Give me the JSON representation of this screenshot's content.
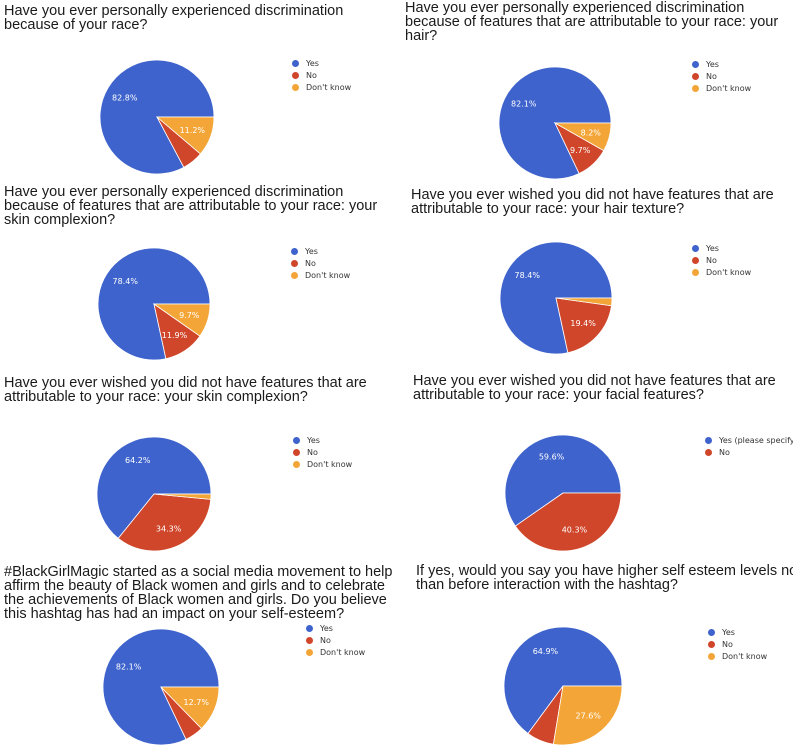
{
  "colors": {
    "Yes": "#3e63cc",
    "No": "#d0462b",
    "Don't know": "#f3a637",
    "Yes (please specify)": "#3e63cc"
  },
  "chart_data": [
    {
      "type": "pie",
      "title": "Have you ever personally experienced discrimination because of your race?",
      "title_lines": [
        "Have you ever personally experienced discrimination",
        "because of your race?"
      ],
      "legend": [
        "Yes",
        "No",
        "Don't know"
      ],
      "values": [
        82.8,
        6.0,
        11.2
      ],
      "value_labels": [
        "82.8%",
        "",
        "11.2%"
      ]
    },
    {
      "type": "pie",
      "title": "Have you ever personally experienced discrimination because of features that are attributable to your race: your hair?",
      "title_lines": [
        "Have you ever personally experienced discrimination",
        "because of features that are attributable to your race: your",
        "hair?"
      ],
      "legend": [
        "Yes",
        "No",
        "Don't know"
      ],
      "values": [
        82.1,
        9.7,
        8.2
      ],
      "value_labels": [
        "82.1%",
        "9.7%",
        "8.2%"
      ]
    },
    {
      "type": "pie",
      "title": "Have you ever personally experienced discrimination because of features that are attributable to your race: your skin complexion?",
      "title_lines": [
        "Have you ever personally experienced discrimination",
        "because of features that are attributable to your race: your",
        "skin complexion?"
      ],
      "legend": [
        "Yes",
        "No",
        "Don't know"
      ],
      "values": [
        78.4,
        11.9,
        9.7
      ],
      "value_labels": [
        "78.4%",
        "11.9%",
        "9.7%"
      ]
    },
    {
      "type": "pie",
      "title": "Have you ever wished you did not have features that are attributable to your race: your hair texture?",
      "title_lines": [
        "Have you ever wished you did not have features that are",
        "attributable to your race: your hair texture?"
      ],
      "legend": [
        "Yes",
        "No",
        "Don't know"
      ],
      "values": [
        78.4,
        19.4,
        2.2
      ],
      "value_labels": [
        "78.4%",
        "19.4%",
        ""
      ]
    },
    {
      "type": "pie",
      "title": "Have you ever wished you did not have features that are attributable to your race: your skin complexion?",
      "title_lines": [
        "Have you ever wished you did not have features that are",
        "attributable to your race: your skin complexion?"
      ],
      "legend": [
        "Yes",
        "No",
        "Don't know"
      ],
      "values": [
        64.2,
        34.3,
        1.5
      ],
      "value_labels": [
        "64.2%",
        "34.3%",
        ""
      ]
    },
    {
      "type": "pie",
      "title": "Have you ever wished you did not have features that are attributable to your race: your facial features?",
      "title_lines": [
        "Have you ever wished you did not have features that are",
        "attributable to your race: your facial features?"
      ],
      "legend": [
        "Yes (please specify)",
        "No"
      ],
      "values": [
        59.6,
        40.3
      ],
      "value_labels": [
        "59.6%",
        "40.3%"
      ]
    },
    {
      "type": "pie",
      "title": "#BlackGirlMagic started as a social media movement to help affirm the beauty of Black women and girls and to celebrate the achievements of Black women and girls. Do you believe this hashtag has had an impact on your self-esteem?",
      "title_lines": [
        "#BlackGirlMagic started as a social media movement to help",
        "affirm the beauty of Black women and girls and to celebrate",
        "the achievements of Black women and girls. Do you believe",
        "this hashtag has had an impact on your self-esteem?"
      ],
      "legend": [
        "Yes",
        "No",
        "Don't know"
      ],
      "values": [
        82.1,
        5.2,
        12.7
      ],
      "value_labels": [
        "82.1%",
        "",
        "12.7%"
      ]
    },
    {
      "type": "pie",
      "title": "If yes, would you say you have higher self esteem levels now than before interaction with the hashtag?",
      "title_lines": [
        "If yes, would you say you have higher self esteem levels now",
        "than before interaction with the hashtag?"
      ],
      "legend": [
        "Yes",
        "No",
        "Don't know"
      ],
      "values": [
        64.9,
        7.5,
        27.6
      ],
      "value_labels": [
        "64.9%",
        "",
        "27.6%"
      ]
    }
  ]
}
